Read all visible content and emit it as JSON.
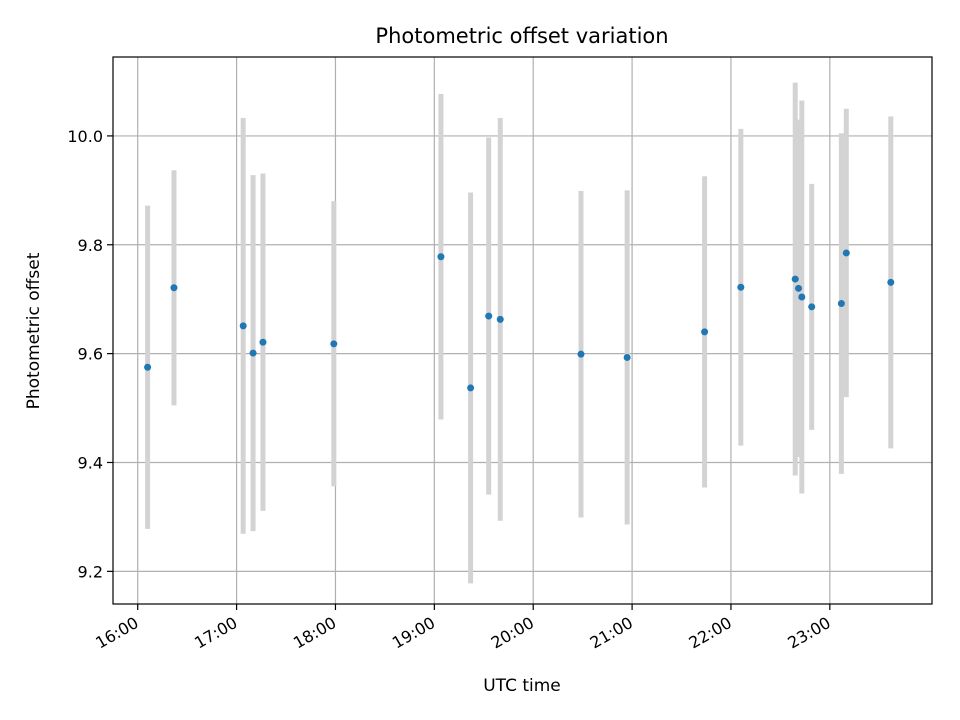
{
  "chart_data": {
    "type": "scatter",
    "title": "Photometric offset variation",
    "xlabel": "UTC time",
    "ylabel": "Photometric offset",
    "x_ticks": [
      "16:00",
      "17:00",
      "18:00",
      "19:00",
      "20:00",
      "21:00",
      "22:00",
      "23:00"
    ],
    "y_ticks": [
      "9.2",
      "9.4",
      "9.6",
      "9.8",
      "10.0"
    ],
    "xlim": [
      "15:45",
      "24:02"
    ],
    "ylim": [
      9.14,
      10.145
    ],
    "grid": true,
    "legend": "none",
    "colors": {
      "point": "#1f77b4",
      "errorbar": "#d3d3d3",
      "grid": "#b0b0b0"
    },
    "points": [
      {
        "x": "16:06",
        "y": 9.575,
        "err": 0.297
      },
      {
        "x": "16:22",
        "y": 9.721,
        "err": 0.216
      },
      {
        "x": "17:04",
        "y": 9.651,
        "err": 0.382
      },
      {
        "x": "17:10",
        "y": 9.601,
        "err": 0.327
      },
      {
        "x": "17:16",
        "y": 9.621,
        "err": 0.31
      },
      {
        "x": "17:59",
        "y": 9.618,
        "err": 0.262
      },
      {
        "x": "19:04",
        "y": 9.778,
        "err": 0.299
      },
      {
        "x": "19:22",
        "y": 9.537,
        "err": 0.359
      },
      {
        "x": "19:33",
        "y": 9.669,
        "err": 0.328
      },
      {
        "x": "19:40",
        "y": 9.663,
        "err": 0.37
      },
      {
        "x": "20:29",
        "y": 9.599,
        "err": 0.3
      },
      {
        "x": "20:57",
        "y": 9.593,
        "err": 0.307
      },
      {
        "x": "21:44",
        "y": 9.64,
        "err": 0.286
      },
      {
        "x": "22:06",
        "y": 9.722,
        "err": 0.291
      },
      {
        "x": "22:39",
        "y": 9.737,
        "err": 0.361
      },
      {
        "x": "22:41",
        "y": 9.72,
        "err": 0.31
      },
      {
        "x": "22:43",
        "y": 9.704,
        "err": 0.361
      },
      {
        "x": "22:49",
        "y": 9.686,
        "err": 0.226
      },
      {
        "x": "23:07",
        "y": 9.692,
        "err": 0.313
      },
      {
        "x": "23:10",
        "y": 9.785,
        "err": 0.265
      },
      {
        "x": "23:37",
        "y": 9.731,
        "err": 0.305
      }
    ]
  }
}
